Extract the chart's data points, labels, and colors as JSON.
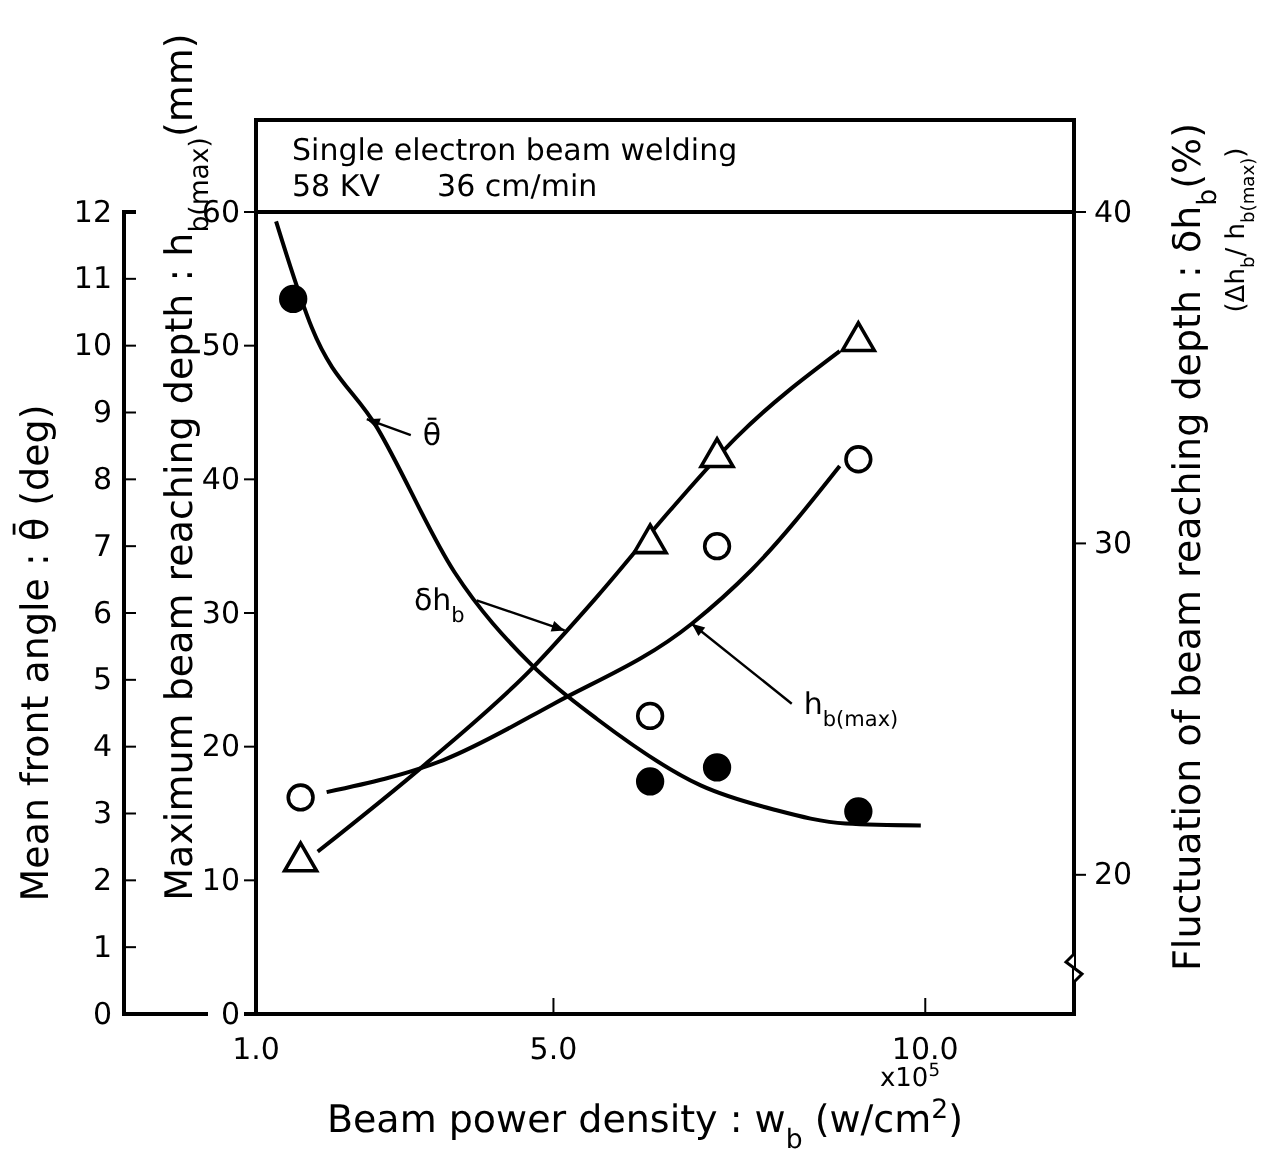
{
  "chart_data": {
    "type": "line",
    "title": "Single electron beam welding",
    "subtitle": "58 KV      36 cm/min",
    "xlabel": "Beam power density :  w$_{b}$ (w/cm$^{2}$)",
    "ylabel": "Maximum beam reaching depth : h$_{b(max)}$(mm)",
    "y2label": "Fluctuation of beam reaching depth : δh$_{b}$(%)",
    "y3label": "Mean front angle : θ̄ (deg)",
    "xlim": [
      1,
      12
    ],
    "xticks": [
      {
        "value": 1,
        "label": "1.0"
      },
      {
        "value": 5,
        "label": "5.0"
      },
      {
        "value": 10,
        "label": "10.0"
      }
    ],
    "ylim": [
      0,
      60
    ],
    "yticks": [
      0,
      10,
      20,
      30,
      40,
      50,
      60
    ],
    "y2lim": [
      15.8,
      40
    ],
    "y2ticks": [
      20,
      30,
      40
    ],
    "y3lim": [
      0,
      12
    ],
    "y3ticks": [
      0,
      1,
      2,
      3,
      4,
      5,
      6,
      7,
      8,
      9,
      10,
      11,
      12
    ],
    "grid": false,
    "annotations": [
      "x10$^{5}$",
      "(Δh$_{b}$/ h$_{b(max)}$)",
      {
        "text": "θ̄",
        "x": 2.49,
        "y": 44.5
      },
      {
        "text": "δh$_{b}$",
        "x": 5.15,
        "y": 28.7
      },
      {
        "text": "h$_{b(max)}$",
        "x": 6.86,
        "y": 29.2
      }
    ],
    "series": [
      {
        "axis": "y3",
        "color": "#000000",
        "marker": "none",
        "x": [
          1.27,
          1.75,
          2.63,
          3.67,
          4.7,
          5.59,
          6.98,
          7.96,
          8.93,
          9.94
        ],
        "values": [
          11.86,
          10.27,
          8.77,
          6.61,
          5.23,
          4.41,
          3.42,
          3.06,
          2.85,
          2.82
        ]
      },
      {
        "axis": "y",
        "color": "#000000",
        "marker": "none",
        "x": [
          1.95,
          3.52,
          5.0,
          6.86,
          7.66,
          8.85
        ],
        "values": [
          16.6,
          19.0,
          23.2,
          29.2,
          33.2,
          41.0
        ]
      },
      {
        "axis": "y2",
        "color": "#000000",
        "marker": "none",
        "x": [
          1.83,
          3.31,
          4.7,
          5.59,
          6.57,
          7.46,
          8.85
        ],
        "values": [
          20.7,
          23.4,
          26.2,
          28.4,
          31.0,
          33.2,
          35.8
        ]
      },
      {
        "type": "scatter",
        "axis": "y3",
        "color": "#000000",
        "marker": "circle",
        "x": [
          1.5,
          6.3,
          7.2,
          9.1
        ],
        "values": [
          10.7,
          3.48,
          3.69,
          3.03
        ]
      },
      {
        "type": "scatter",
        "axis": "y",
        "color": "#000000",
        "marker": "circle",
        "x": [
          1.6,
          6.3,
          7.2,
          9.1
        ],
        "values": [
          16.2,
          22.3,
          35.0,
          41.5
        ]
      },
      {
        "type": "scatter",
        "axis": "y2",
        "color": "#000000",
        "marker": "triangle",
        "x": [
          1.6,
          6.3,
          7.2,
          9.1
        ],
        "values": [
          20.4,
          30.0,
          32.6,
          36.1
        ]
      }
    ]
  }
}
